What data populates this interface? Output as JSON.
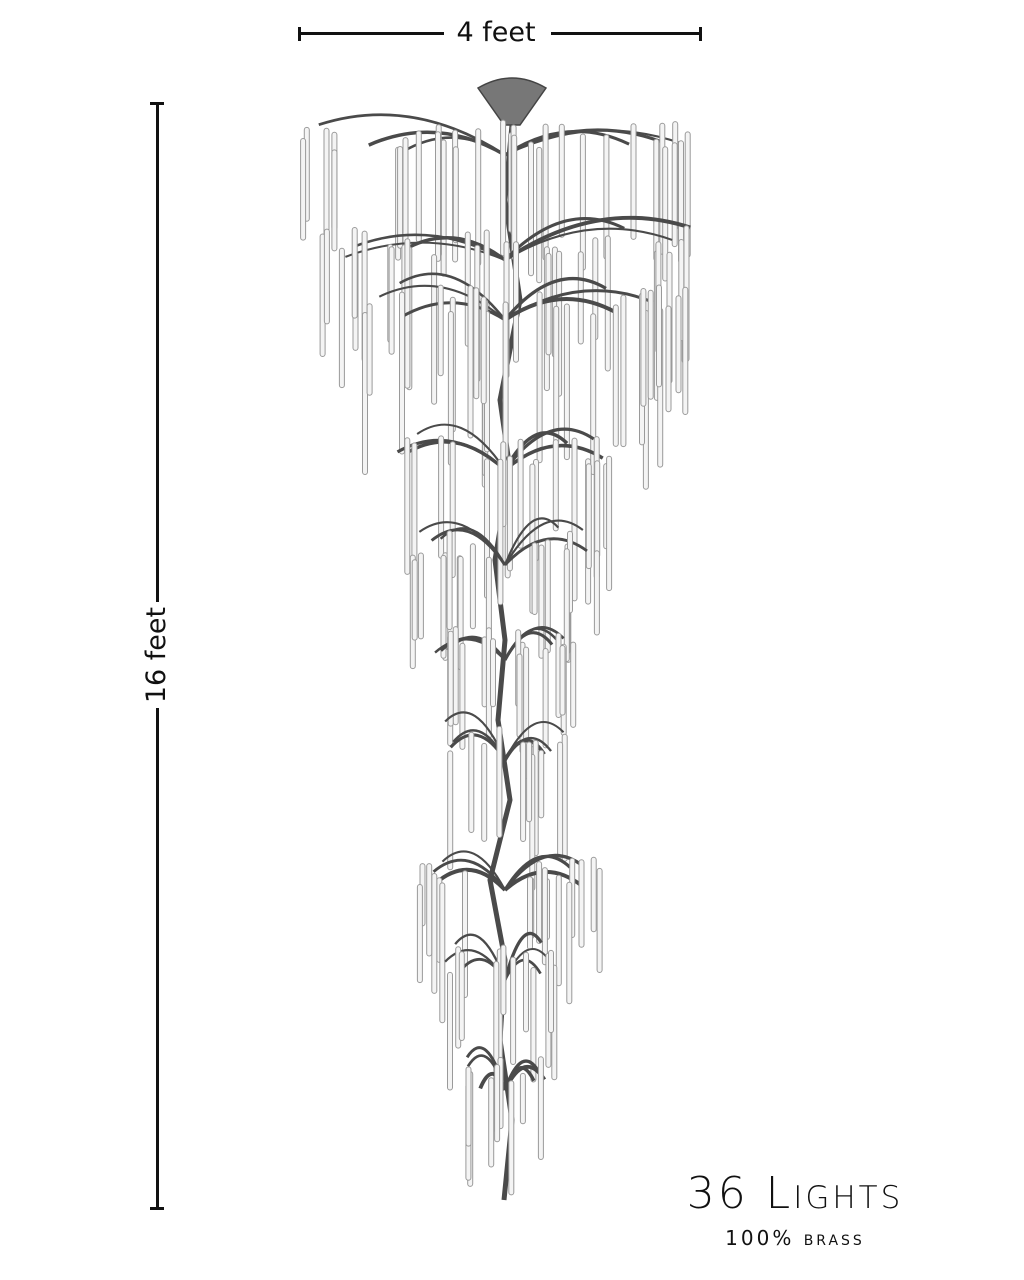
{
  "dimensions": {
    "width_label": "4 feet",
    "height_label": "16 feet"
  },
  "product": {
    "title": "36 Lights",
    "material": "100% brass"
  },
  "colors": {
    "ink": "#111111",
    "branch": "#4a4a4a",
    "crystal": "#9a9a9a"
  }
}
